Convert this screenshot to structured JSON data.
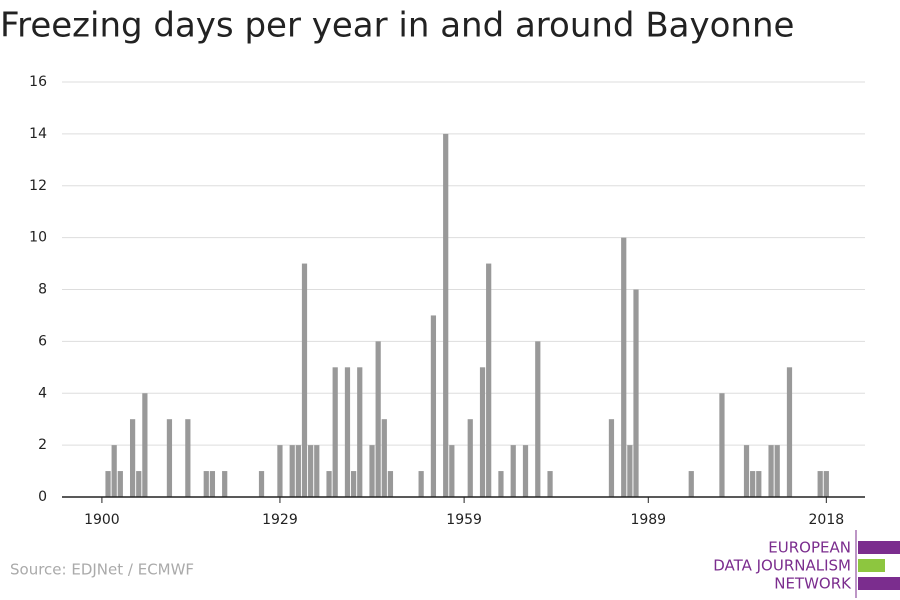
{
  "chart_data": {
    "type": "bar",
    "title": "Freezing days per year in and around Bayonne",
    "source": "Source: EDJNet / ECMWF",
    "logo": [
      "EUROPEAN",
      "DATA JOURNALISM",
      "NETWORK"
    ],
    "color": "#999999",
    "x": [
      1901,
      1902,
      1903,
      1905,
      1906,
      1907,
      1911,
      1914,
      1917,
      1918,
      1920,
      1926,
      1929,
      1931,
      1932,
      1933,
      1934,
      1935,
      1937,
      1938,
      1940,
      1941,
      1942,
      1944,
      1945,
      1946,
      1947,
      1952,
      1954,
      1956,
      1957,
      1960,
      1962,
      1963,
      1965,
      1967,
      1969,
      1971,
      1973,
      1983,
      1985,
      1986,
      1987,
      1996,
      2001,
      2005,
      2006,
      2007,
      2009,
      2010,
      2012,
      2017,
      2018
    ],
    "values": [
      1,
      2,
      1,
      3,
      1,
      4,
      3,
      3,
      1,
      1,
      1,
      1,
      2,
      2,
      2,
      9,
      2,
      2,
      1,
      5,
      5,
      1,
      5,
      2,
      6,
      3,
      1,
      1,
      7,
      14,
      2,
      3,
      5,
      9,
      1,
      2,
      2,
      6,
      1,
      3,
      10,
      2,
      8,
      1,
      4,
      2,
      1,
      1,
      2,
      2,
      5,
      1,
      1
    ],
    "xlim": [
      1893.5,
      2024.3
    ],
    "xticks": [
      1900,
      1929,
      1959,
      1989,
      2018
    ],
    "ylim": [
      0,
      16
    ],
    "yticks": [
      0,
      2,
      4,
      6,
      8,
      10,
      12,
      14,
      16
    ],
    "grid": true
  }
}
